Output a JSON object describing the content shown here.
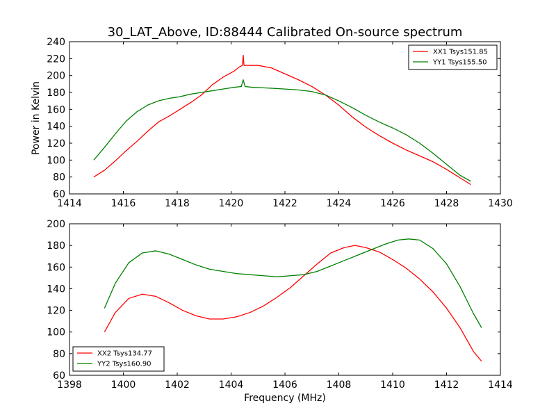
{
  "chart_data": {
    "title": "30_LAT_Above, ID:88444 Calibrated On-source spectrum",
    "xlabel": "Frequency (MHz)",
    "panels": [
      {
        "type": "line",
        "ylabel": "Power in Kelvin",
        "xlim": [
          1414,
          1430
        ],
        "ylim": [
          60,
          240
        ],
        "xticks": [
          1414,
          1416,
          1418,
          1420,
          1422,
          1424,
          1426,
          1428,
          1430
        ],
        "yticks": [
          60,
          80,
          100,
          120,
          140,
          160,
          180,
          200,
          220,
          240
        ],
        "legend_position": "top-right",
        "series": [
          {
            "name": "XX1 Tsys151.85",
            "color": "#ff0000",
            "points": [
              [
                1414.9,
                80
              ],
              [
                1415.3,
                88
              ],
              [
                1415.7,
                99
              ],
              [
                1416.1,
                111
              ],
              [
                1416.5,
                122
              ],
              [
                1416.9,
                134
              ],
              [
                1417.3,
                145
              ],
              [
                1417.7,
                152
              ],
              [
                1418.1,
                160
              ],
              [
                1418.5,
                168
              ],
              [
                1418.9,
                177
              ],
              [
                1419.3,
                189
              ],
              [
                1419.7,
                198
              ],
              [
                1420.1,
                205
              ],
              [
                1420.3,
                210
              ],
              [
                1420.42,
                212
              ],
              [
                1420.45,
                224
              ],
              [
                1420.48,
                212
              ],
              [
                1420.6,
                212
              ],
              [
                1421.0,
                212
              ],
              [
                1421.5,
                209
              ],
              [
                1422.0,
                202
              ],
              [
                1422.5,
                195
              ],
              [
                1423.0,
                187
              ],
              [
                1423.5,
                177
              ],
              [
                1424.0,
                165
              ],
              [
                1424.5,
                151
              ],
              [
                1425.0,
                139
              ],
              [
                1425.5,
                129
              ],
              [
                1426.0,
                120
              ],
              [
                1426.5,
                112
              ],
              [
                1427.0,
                105
              ],
              [
                1427.5,
                98
              ],
              [
                1428.0,
                89
              ],
              [
                1428.5,
                79
              ],
              [
                1428.9,
                71
              ]
            ]
          },
          {
            "name": "YY1 Tsys155.50",
            "color": "#008000",
            "points": [
              [
                1414.9,
                100
              ],
              [
                1415.3,
                115
              ],
              [
                1415.7,
                131
              ],
              [
                1416.1,
                146
              ],
              [
                1416.5,
                157
              ],
              [
                1416.9,
                165
              ],
              [
                1417.3,
                170
              ],
              [
                1417.7,
                173
              ],
              [
                1418.1,
                175
              ],
              [
                1418.5,
                178
              ],
              [
                1418.9,
                180
              ],
              [
                1419.3,
                182
              ],
              [
                1419.7,
                184
              ],
              [
                1420.1,
                186
              ],
              [
                1420.38,
                187
              ],
              [
                1420.45,
                195
              ],
              [
                1420.52,
                187
              ],
              [
                1420.8,
                186
              ],
              [
                1421.5,
                185
              ],
              [
                1422.0,
                184
              ],
              [
                1422.5,
                183
              ],
              [
                1423.0,
                181
              ],
              [
                1423.5,
                177
              ],
              [
                1424.0,
                170
              ],
              [
                1424.5,
                162
              ],
              [
                1425.0,
                153
              ],
              [
                1425.5,
                145
              ],
              [
                1426.0,
                138
              ],
              [
                1426.5,
                130
              ],
              [
                1427.0,
                120
              ],
              [
                1427.5,
                108
              ],
              [
                1428.0,
                95
              ],
              [
                1428.5,
                82
              ],
              [
                1428.9,
                75
              ]
            ]
          }
        ]
      },
      {
        "type": "line",
        "ylabel": "",
        "xlim": [
          1398,
          1414
        ],
        "ylim": [
          60,
          200
        ],
        "xticks": [
          1398,
          1400,
          1402,
          1404,
          1406,
          1408,
          1410,
          1412,
          1414
        ],
        "yticks": [
          60,
          80,
          100,
          120,
          140,
          160,
          180,
          200
        ],
        "legend_position": "bottom-left",
        "series": [
          {
            "name": "XX2 Tsys134.77",
            "color": "#ff0000",
            "points": [
              [
                1399.3,
                100
              ],
              [
                1399.7,
                118
              ],
              [
                1400.2,
                131
              ],
              [
                1400.7,
                135
              ],
              [
                1401.2,
                133
              ],
              [
                1401.7,
                127
              ],
              [
                1402.2,
                120
              ],
              [
                1402.7,
                115
              ],
              [
                1403.2,
                112
              ],
              [
                1403.7,
                112
              ],
              [
                1404.2,
                114
              ],
              [
                1404.7,
                118
              ],
              [
                1405.2,
                124
              ],
              [
                1405.7,
                132
              ],
              [
                1406.2,
                141
              ],
              [
                1406.7,
                152
              ],
              [
                1407.2,
                163
              ],
              [
                1407.7,
                173
              ],
              [
                1408.2,
                178
              ],
              [
                1408.6,
                180
              ],
              [
                1409.0,
                178
              ],
              [
                1409.5,
                174
              ],
              [
                1410.0,
                167
              ],
              [
                1410.5,
                159
              ],
              [
                1411.0,
                149
              ],
              [
                1411.5,
                137
              ],
              [
                1412.0,
                122
              ],
              [
                1412.5,
                104
              ],
              [
                1413.0,
                82
              ],
              [
                1413.3,
                73
              ]
            ]
          },
          {
            "name": "YY2 Tsys160.90",
            "color": "#008000",
            "points": [
              [
                1399.3,
                122
              ],
              [
                1399.7,
                145
              ],
              [
                1400.2,
                164
              ],
              [
                1400.7,
                173
              ],
              [
                1401.2,
                175
              ],
              [
                1401.7,
                172
              ],
              [
                1402.2,
                167
              ],
              [
                1402.7,
                162
              ],
              [
                1403.2,
                158
              ],
              [
                1403.7,
                156
              ],
              [
                1404.2,
                154
              ],
              [
                1404.7,
                153
              ],
              [
                1405.2,
                152
              ],
              [
                1405.7,
                151
              ],
              [
                1406.2,
                152
              ],
              [
                1406.7,
                153
              ],
              [
                1407.2,
                156
              ],
              [
                1407.7,
                161
              ],
              [
                1408.2,
                166
              ],
              [
                1408.7,
                171
              ],
              [
                1409.2,
                176
              ],
              [
                1409.7,
                181
              ],
              [
                1410.2,
                185
              ],
              [
                1410.6,
                186
              ],
              [
                1411.0,
                185
              ],
              [
                1411.5,
                177
              ],
              [
                1412.0,
                163
              ],
              [
                1412.5,
                142
              ],
              [
                1413.0,
                117
              ],
              [
                1413.3,
                104
              ]
            ]
          }
        ]
      }
    ]
  }
}
